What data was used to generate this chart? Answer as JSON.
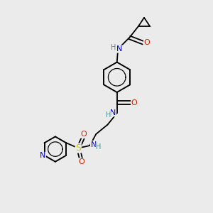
{
  "bg_color": "#ebebeb",
  "atom_colors": {
    "C": "#000000",
    "N": "#0000cc",
    "O": "#cc2200",
    "S": "#cccc00",
    "H": "#4a9090"
  },
  "bond_color": "#000000",
  "bg_hex": "#ebebeb"
}
